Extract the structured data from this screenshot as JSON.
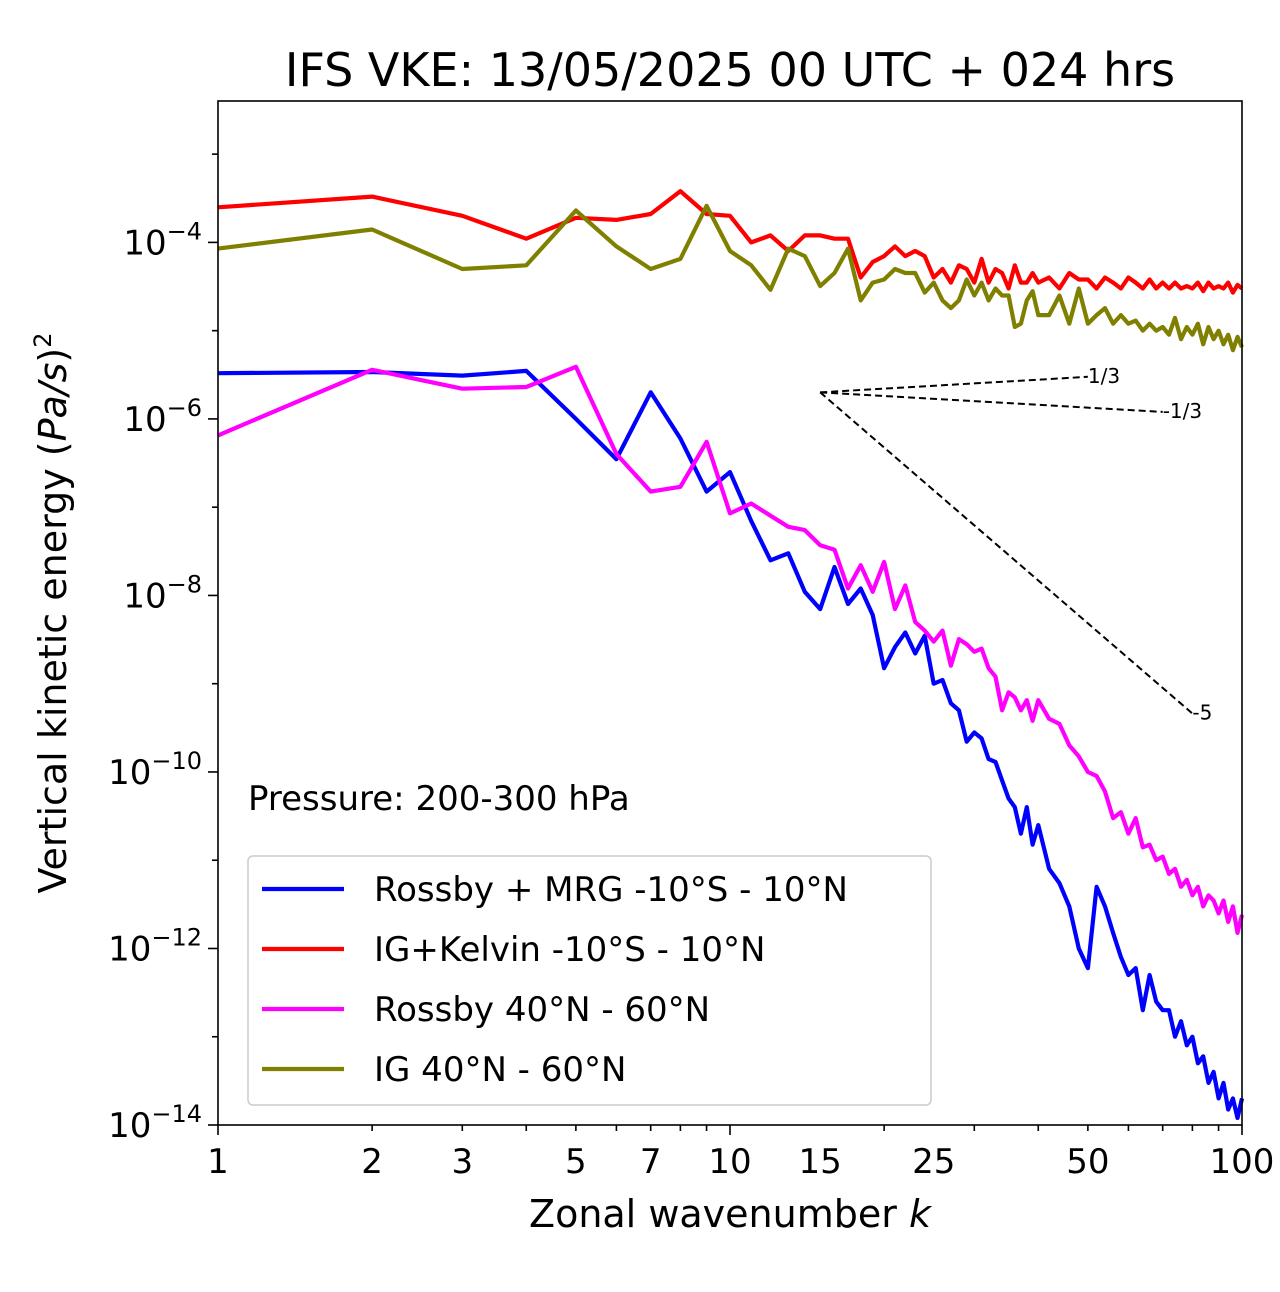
{
  "chart_data": {
    "type": "line",
    "title": "IFS VKE: 13/05/2025 00 UTC + 024 hrs",
    "xlabel": "Zonal wavenumber k",
    "xlabel_main": "Zonal wavenumber ",
    "xlabel_var": "k",
    "ylabel_prefix": "Vertical kinetic energy (",
    "ylabel_var": "Pa/s",
    "ylabel_suffix": ")",
    "ylabel_exp": "2",
    "x_scale": "log",
    "y_scale": "log",
    "xlim": [
      1,
      100
    ],
    "ylim": [
      1e-14,
      0.004
    ],
    "x_ticks": [
      1,
      2,
      3,
      5,
      7,
      10,
      15,
      25,
      50,
      100
    ],
    "x_tick_labels": [
      "1",
      "2",
      "3",
      "5",
      "7",
      "10",
      "15",
      "25",
      "50",
      "100"
    ],
    "y_ticks": [
      {
        "value": 0.0001,
        "base": "10",
        "exp": "−4"
      },
      {
        "value": 1e-06,
        "base": "10",
        "exp": "−6"
      },
      {
        "value": 1e-08,
        "base": "10",
        "exp": "−8"
      },
      {
        "value": 1e-10,
        "base": "10",
        "exp": "−10"
      },
      {
        "value": 1e-12,
        "base": "10",
        "exp": "−12"
      },
      {
        "value": 1e-14,
        "base": "10",
        "exp": "−14"
      }
    ],
    "annotation": "Pressure: 200-300 hPa",
    "legend_position": "lower-left",
    "grid": false,
    "reference_slopes": [
      {
        "label": "1/3",
        "from": [
          15,
          2e-06
        ],
        "to": [
          50,
          3e-06
        ]
      },
      {
        "label": "-1/3",
        "from": [
          15,
          2e-06
        ],
        "to": [
          70,
          1.2e-06
        ]
      },
      {
        "label": "-5",
        "from": [
          15,
          2e-06
        ],
        "to": [
          80,
          4.6e-10
        ]
      }
    ],
    "series": [
      {
        "name": "Rossby + MRG -10°S - 10°N",
        "color": "#0000ff",
        "x": [
          1,
          2,
          3,
          4,
          5,
          6,
          7,
          8,
          9,
          10,
          11,
          12,
          13,
          14,
          15,
          16,
          17,
          18,
          19,
          20,
          21,
          22,
          23,
          24,
          25,
          26,
          27,
          28,
          29,
          30,
          31,
          32,
          33,
          34,
          35,
          36,
          37,
          38,
          39,
          40,
          42,
          44,
          46,
          48,
          50,
          52,
          54,
          56,
          58,
          60,
          62,
          64,
          66,
          68,
          70,
          72,
          74,
          76,
          78,
          80,
          82,
          84,
          86,
          88,
          90,
          92,
          94,
          96,
          98,
          100
        ],
        "y": [
          3.3e-06,
          3.4e-06,
          3.1e-06,
          3.5e-06,
          1e-06,
          3.5e-07,
          2e-06,
          6e-07,
          1.5e-07,
          2.5e-07,
          7e-08,
          2.5e-08,
          3e-08,
          1.1e-08,
          7e-09,
          2.1e-08,
          8e-09,
          1.2e-08,
          6e-09,
          1.5e-09,
          2.6e-09,
          3.8e-09,
          2.2e-09,
          3.5e-09,
          1e-09,
          1.1e-09,
          6e-10,
          5e-10,
          2.2e-10,
          2.8e-10,
          2.4e-10,
          1.4e-10,
          1.3e-10,
          8e-11,
          5e-11,
          4e-11,
          2e-11,
          4e-11,
          1.5e-11,
          2.5e-11,
          8e-12,
          5.5e-12,
          3e-12,
          1e-12,
          6e-13,
          5e-12,
          3e-12,
          1.5e-12,
          8e-13,
          5e-13,
          6e-13,
          2e-13,
          5e-13,
          2.5e-13,
          2e-13,
          2e-13,
          1e-13,
          1.5e-13,
          8e-14,
          1e-13,
          5e-14,
          6e-14,
          3e-14,
          4e-14,
          2e-14,
          3e-14,
          1.5e-14,
          2e-14,
          1.2e-14,
          2e-14
        ]
      },
      {
        "name": "IG+Kelvin -10°S - 10°N",
        "color": "#ff0000",
        "x": [
          1,
          2,
          3,
          4,
          5,
          6,
          7,
          8,
          9,
          10,
          11,
          12,
          13,
          14,
          15,
          16,
          17,
          18,
          19,
          20,
          21,
          22,
          23,
          24,
          25,
          26,
          27,
          28,
          29,
          30,
          31,
          32,
          33,
          34,
          35,
          36,
          37,
          38,
          39,
          40,
          42,
          44,
          46,
          48,
          50,
          52,
          54,
          56,
          58,
          60,
          62,
          64,
          66,
          68,
          70,
          72,
          74,
          76,
          78,
          80,
          82,
          84,
          86,
          88,
          90,
          92,
          94,
          96,
          98,
          100
        ],
        "y": [
          0.00025,
          0.00033,
          0.0002,
          0.00011,
          0.00019,
          0.00018,
          0.00021,
          0.00038,
          0.00021,
          0.0002,
          0.0001,
          0.00012,
          8e-05,
          0.00012,
          0.00012,
          0.00011,
          0.00011,
          4e-05,
          6e-05,
          7e-05,
          9e-05,
          7e-05,
          8e-05,
          7e-05,
          4e-05,
          5e-05,
          3.5e-05,
          5.5e-05,
          5e-05,
          3.5e-05,
          6.5e-05,
          3.5e-05,
          5e-05,
          4.5e-05,
          3e-05,
          5.5e-05,
          3.5e-05,
          3.5e-05,
          4.5e-05,
          3.5e-05,
          4e-05,
          3e-05,
          4.5e-05,
          3.8e-05,
          3.8e-05,
          3e-05,
          4e-05,
          3.5e-05,
          3e-05,
          4e-05,
          3.5e-05,
          3e-05,
          3.8e-05,
          3e-05,
          3.5e-05,
          3e-05,
          3.5e-05,
          3e-05,
          3.2e-05,
          3e-05,
          3.5e-05,
          2.8e-05,
          3.5e-05,
          3e-05,
          3.2e-05,
          3e-05,
          3.5e-05,
          2.7e-05,
          3.3e-05,
          3e-05
        ]
      },
      {
        "name": "Rossby 40°N - 60°N",
        "color": "#ff00ff",
        "x": [
          1,
          2,
          3,
          4,
          5,
          6,
          7,
          8,
          9,
          10,
          11,
          12,
          13,
          14,
          15,
          16,
          17,
          18,
          19,
          20,
          21,
          22,
          23,
          24,
          25,
          26,
          27,
          28,
          29,
          30,
          31,
          32,
          33,
          34,
          35,
          36,
          37,
          38,
          39,
          40,
          42,
          44,
          46,
          48,
          50,
          52,
          54,
          56,
          58,
          60,
          62,
          64,
          66,
          68,
          70,
          72,
          74,
          76,
          78,
          80,
          82,
          84,
          86,
          88,
          90,
          92,
          94,
          96,
          98,
          100
        ],
        "y": [
          6.5e-07,
          3.6e-06,
          2.2e-06,
          2.3e-06,
          3.9e-06,
          4e-07,
          1.5e-07,
          1.7e-07,
          5.5e-07,
          8.5e-08,
          1.1e-07,
          8e-08,
          6e-08,
          5.5e-08,
          3.7e-08,
          3.3e-08,
          1.2e-08,
          2.2e-08,
          1.1e-08,
          2.4e-08,
          7e-09,
          1.3e-08,
          5e-09,
          4e-09,
          3e-09,
          4e-09,
          1.6e-09,
          3.2e-09,
          2.8e-09,
          2.3e-09,
          2.5e-09,
          1.5e-09,
          1.2e-09,
          5e-10,
          8e-10,
          7e-10,
          5e-10,
          6.5e-10,
          3.8e-10,
          6.5e-10,
          4e-10,
          3.5e-10,
          2e-10,
          1.5e-10,
          1e-10,
          9e-11,
          6e-11,
          3e-11,
          3.5e-11,
          2e-11,
          3e-11,
          1.4e-11,
          1.5e-11,
          1e-11,
          1.1e-11,
          7e-12,
          8e-12,
          5e-12,
          6e-12,
          4e-12,
          5e-12,
          3e-12,
          4e-12,
          3.5e-12,
          2.5e-12,
          3.5e-12,
          2e-12,
          3e-12,
          1.5e-12,
          2.4e-12
        ]
      },
      {
        "name": "IG 40°N - 60°N",
        "color": "#808000",
        "x": [
          1,
          2,
          3,
          4,
          5,
          6,
          7,
          8,
          9,
          10,
          11,
          12,
          13,
          14,
          15,
          16,
          17,
          18,
          19,
          20,
          21,
          22,
          23,
          24,
          25,
          26,
          27,
          28,
          29,
          30,
          31,
          32,
          33,
          34,
          35,
          36,
          37,
          38,
          39,
          40,
          42,
          44,
          46,
          48,
          50,
          52,
          54,
          56,
          58,
          60,
          62,
          64,
          66,
          68,
          70,
          72,
          74,
          76,
          78,
          80,
          82,
          84,
          86,
          88,
          90,
          92,
          94,
          96,
          98,
          100
        ],
        "y": [
          8.5e-05,
          0.00014,
          5e-05,
          5.5e-05,
          0.00023,
          9e-05,
          5e-05,
          6.5e-05,
          0.00026,
          8e-05,
          5.5e-05,
          2.9e-05,
          8.5e-05,
          7e-05,
          3.2e-05,
          4.5e-05,
          8.5e-05,
          2.2e-05,
          3.5e-05,
          3.8e-05,
          5e-05,
          4.5e-05,
          4.5e-05,
          2.7e-05,
          3.5e-05,
          2.2e-05,
          1.8e-05,
          2.2e-05,
          3.8e-05,
          2.5e-05,
          3.5e-05,
          2.2e-05,
          3e-05,
          2.5e-05,
          2.5e-05,
          1.1e-05,
          1.2e-05,
          2.2e-05,
          2.8e-05,
          1.5e-05,
          1.5e-05,
          2.5e-05,
          1.2e-05,
          3e-05,
          1.2e-05,
          1.5e-05,
          1.8e-05,
          1.2e-05,
          1.5e-05,
          1.2e-05,
          1.3e-05,
          1e-05,
          1.2e-05,
          1e-05,
          1.1e-05,
          9e-06,
          1.4e-05,
          8e-06,
          1.1e-05,
          9e-06,
          1.2e-05,
          7e-06,
          1.1e-05,
          8e-06,
          1e-05,
          7e-06,
          9e-06,
          6e-06,
          8.5e-06,
          6.5e-06
        ]
      }
    ]
  }
}
